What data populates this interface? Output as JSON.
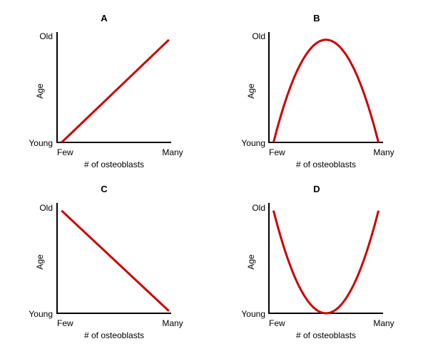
{
  "colors": {
    "curve": "#cc0000",
    "axis": "#000000"
  },
  "chart_data": [
    {
      "type": "line",
      "title": "A",
      "xlabel": "# of osteoblasts",
      "ylabel": "Age",
      "x_ticks": [
        "Few",
        "Many"
      ],
      "y_ticks": [
        "Young",
        "Old"
      ],
      "xlim": [
        0,
        1
      ],
      "ylim": [
        0,
        1
      ],
      "grid": false,
      "shape": "increasing",
      "series": [
        {
          "x": [
            0.04,
            0.98
          ],
          "y": [
            0.0,
            0.93
          ]
        }
      ]
    },
    {
      "type": "line",
      "title": "B",
      "xlabel": "# of osteoblasts",
      "ylabel": "Age",
      "x_ticks": [
        "Few",
        "Many"
      ],
      "y_ticks": [
        "Young",
        "Old"
      ],
      "xlim": [
        0,
        1
      ],
      "ylim": [
        0,
        1
      ],
      "grid": false,
      "shape": "inverted-u",
      "series": [
        {
          "x": [
            0.04,
            0.5,
            0.96
          ],
          "y": [
            0.0,
            0.93,
            0.0
          ]
        }
      ]
    },
    {
      "type": "line",
      "title": "C",
      "xlabel": "# of osteoblasts",
      "ylabel": "Age",
      "x_ticks": [
        "Few",
        "Many"
      ],
      "y_ticks": [
        "Young",
        "Old"
      ],
      "xlim": [
        0,
        1
      ],
      "ylim": [
        0,
        1
      ],
      "grid": false,
      "shape": "decreasing",
      "series": [
        {
          "x": [
            0.04,
            0.98
          ],
          "y": [
            0.93,
            0.02
          ]
        }
      ]
    },
    {
      "type": "line",
      "title": "D",
      "xlabel": "# of osteoblasts",
      "ylabel": "Age",
      "x_ticks": [
        "Few",
        "Many"
      ],
      "y_ticks": [
        "Young",
        "Old"
      ],
      "xlim": [
        0,
        1
      ],
      "ylim": [
        0,
        1
      ],
      "grid": false,
      "shape": "u",
      "series": [
        {
          "x": [
            0.04,
            0.5,
            0.96
          ],
          "y": [
            0.93,
            0.0,
            0.93
          ]
        }
      ]
    }
  ]
}
